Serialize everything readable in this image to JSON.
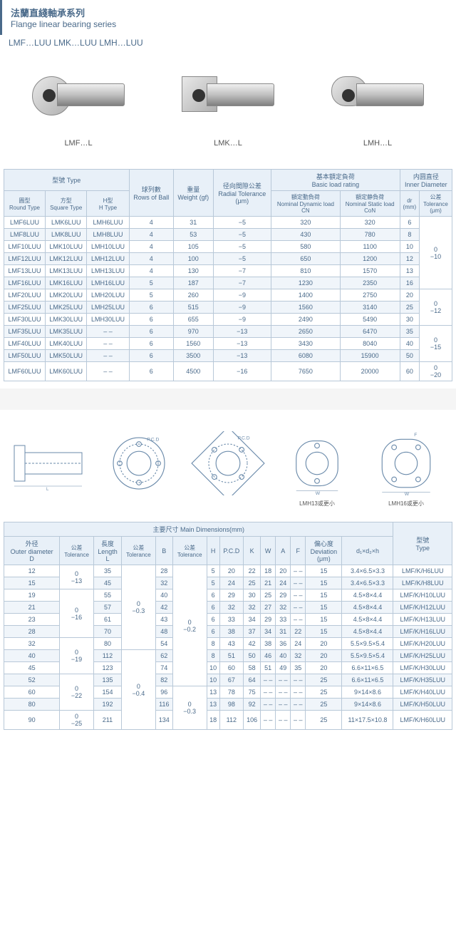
{
  "header": {
    "title_cn": "法蘭直綫軸承系列",
    "title_en": "Flange linear bearing series",
    "subtitle": "LMF…LUU  LMK…LUU  LMH…LUU"
  },
  "products": [
    {
      "label": "LMF…L",
      "shape": "round"
    },
    {
      "label": "LMK…L",
      "shape": "square"
    },
    {
      "label": "LMH…L",
      "shape": "h"
    }
  ],
  "table1": {
    "headers": {
      "type": "型號 Type",
      "type_round": "圓型\nRound Type",
      "type_square": "方型\nSquare Type",
      "type_h": "H型\nH Type",
      "rows_ball": "球列數\nRows of Ball",
      "weight": "重量\nWeight (gf)",
      "radial_tol": "径向間隙公差\nRadial Tolerance\n(μm)",
      "basic_load": "基本額定負荷\nBasic load rating",
      "dyn_load": "額定動負荷\nNominal Dynamic load\nCN",
      "stat_load": "額定静負荷\nNominal Static load\nCoN",
      "inner_dia": "内圆直径\nInner Diameter",
      "dr": "dr\n(mm)",
      "tol": "公差\nTolerance\n(μm)"
    },
    "rows": [
      {
        "r": "LMF6LUU",
        "s": "LMK6LUU",
        "h": "LMH6LUU",
        "rb": "4",
        "w": "31",
        "rt": "−5",
        "dl": "320",
        "sl": "320",
        "dr": "6",
        "tol": ""
      },
      {
        "r": "LMF8LUU",
        "s": "LMK8LUU",
        "h": "LMH8LUU",
        "rb": "4",
        "w": "53",
        "rt": "−5",
        "dl": "430",
        "sl": "780",
        "dr": "8",
        "tol": ""
      },
      {
        "r": "LMF10LUU",
        "s": "LMK10LUU",
        "h": "LMH10LUU",
        "rb": "4",
        "w": "105",
        "rt": "−5",
        "dl": "580",
        "sl": "1100",
        "dr": "10",
        "tol": "0\n−10"
      },
      {
        "r": "LMF12LUU",
        "s": "LMK12LUU",
        "h": "LMH12LUU",
        "rb": "4",
        "w": "100",
        "rt": "−5",
        "dl": "650",
        "sl": "1200",
        "dr": "12",
        "tol": ""
      },
      {
        "r": "LMF13LUU",
        "s": "LMK13LUU",
        "h": "LMH13LUU",
        "rb": "4",
        "w": "130",
        "rt": "−7",
        "dl": "810",
        "sl": "1570",
        "dr": "13",
        "tol": ""
      },
      {
        "r": "LMF16LUU",
        "s": "LMK16LUU",
        "h": "LMH16LUU",
        "rb": "5",
        "w": "187",
        "rt": "−7",
        "dl": "1230",
        "sl": "2350",
        "dr": "16",
        "tol": ""
      },
      {
        "r": "LMF20LUU",
        "s": "LMK20LUU",
        "h": "LMH20LUU",
        "rb": "5",
        "w": "260",
        "rt": "−9",
        "dl": "1400",
        "sl": "2750",
        "dr": "20",
        "tol": ""
      },
      {
        "r": "LMF25LUU",
        "s": "LMK25LUU",
        "h": "LMH25LUU",
        "rb": "6",
        "w": "515",
        "rt": "−9",
        "dl": "1560",
        "sl": "3140",
        "dr": "25",
        "tol": "0\n−12"
      },
      {
        "r": "LMF30LUU",
        "s": "LMK30LUU",
        "h": "LMH30LUU",
        "rb": "6",
        "w": "655",
        "rt": "−9",
        "dl": "2490",
        "sl": "5490",
        "dr": "30",
        "tol": ""
      },
      {
        "r": "LMF35LUU",
        "s": "LMK35LUU",
        "h": "– –",
        "rb": "6",
        "w": "970",
        "rt": "−13",
        "dl": "2650",
        "sl": "6470",
        "dr": "35",
        "tol": ""
      },
      {
        "r": "LMF40LUU",
        "s": "LMK40LUU",
        "h": "– –",
        "rb": "6",
        "w": "1560",
        "rt": "−13",
        "dl": "3430",
        "sl": "8040",
        "dr": "40",
        "tol": "0\n−15"
      },
      {
        "r": "LMF50LUU",
        "s": "LMK50LUU",
        "h": "– –",
        "rb": "6",
        "w": "3500",
        "rt": "−13",
        "dl": "6080",
        "sl": "15900",
        "dr": "50",
        "tol": ""
      },
      {
        "r": "LMF60LUU",
        "s": "LMK60LUU",
        "h": "– –",
        "rb": "6",
        "w": "4500",
        "rt": "−16",
        "dl": "7650",
        "sl": "20000",
        "dr": "60",
        "tol": "0\n−20"
      }
    ],
    "tol_spans": [
      {
        "start": 0,
        "span": 6,
        "val": "0\n−10"
      },
      {
        "start": 6,
        "span": 3,
        "val": "0\n−12"
      },
      {
        "start": 9,
        "span": 3,
        "val": "0\n−15"
      },
      {
        "start": 12,
        "span": 1,
        "val": "0\n−20"
      }
    ]
  },
  "diagrams": {
    "lmh13": "LMH13或更小",
    "lmh16": "LMH16或更小"
  },
  "table2": {
    "title": "主要尺寸 Main Dimensions(mm)",
    "headers": {
      "od": "外径\nOuter diameter\nD",
      "od_tol": "公差\nTolerance",
      "len": "長度\nLength\nL",
      "len_tol": "公差\nTolerance",
      "b": "B",
      "b_tol": "公差\nTolerance",
      "h": "H",
      "pcd": "P.C.D",
      "k": "K",
      "w": "W",
      "a": "A",
      "f": "F",
      "dev": "偏心度\nDeviation\n(μm)",
      "d1d2h": "d₁×d₂×h",
      "type": "型號\nType"
    },
    "rows": [
      {
        "d": "12",
        "dtol": "0\n−13",
        "l": "35",
        "ltol": "",
        "b": "28",
        "btol": "",
        "h": "5",
        "pcd": "20",
        "k": "22",
        "w": "18",
        "a": "20",
        "f": "– –",
        "dev": "15",
        "ddh": "3.4×6.5×3.3",
        "type": "LMF/K/H6LUU"
      },
      {
        "d": "15",
        "dtol": "",
        "l": "45",
        "ltol": "",
        "b": "32",
        "btol": "",
        "h": "5",
        "pcd": "24",
        "k": "25",
        "w": "21",
        "a": "24",
        "f": "– –",
        "dev": "15",
        "ddh": "3.4×6.5×3.3",
        "type": "LMF/K/H8LUU"
      },
      {
        "d": "19",
        "dtol": "",
        "l": "55",
        "ltol": "",
        "b": "40",
        "btol": "",
        "h": "6",
        "pcd": "29",
        "k": "30",
        "w": "25",
        "a": "29",
        "f": "– –",
        "dev": "15",
        "ddh": "4.5×8×4.4",
        "type": "LMF/K/H10LUU"
      },
      {
        "d": "21",
        "dtol": "0\n−16",
        "l": "57",
        "ltol": "0\n−0.3",
        "b": "42",
        "btol": "",
        "h": "6",
        "pcd": "32",
        "k": "32",
        "w": "27",
        "a": "32",
        "f": "– –",
        "dev": "15",
        "ddh": "4.5×8×4.4",
        "type": "LMF/K/H12LUU"
      },
      {
        "d": "23",
        "dtol": "",
        "l": "61",
        "ltol": "",
        "b": "43",
        "btol": "0\n−0.2",
        "h": "6",
        "pcd": "33",
        "k": "34",
        "w": "29",
        "a": "33",
        "f": "– –",
        "dev": "15",
        "ddh": "4.5×8×4.4",
        "type": "LMF/K/H13LUU"
      },
      {
        "d": "28",
        "dtol": "",
        "l": "70",
        "ltol": "",
        "b": "48",
        "btol": "",
        "h": "6",
        "pcd": "38",
        "k": "37",
        "w": "34",
        "a": "31",
        "f": "22",
        "dev": "15",
        "ddh": "4.5×8×4.4",
        "type": "LMF/K/H16LUU"
      },
      {
        "d": "32",
        "dtol": "",
        "l": "80",
        "ltol": "",
        "b": "54",
        "btol": "",
        "h": "8",
        "pcd": "43",
        "k": "42",
        "w": "38",
        "a": "36",
        "f": "24",
        "dev": "20",
        "ddh": "5.5×9.5×5.4",
        "type": "LMF/K/H20LUU"
      },
      {
        "d": "40",
        "dtol": "0\n−19",
        "l": "112",
        "ltol": "",
        "b": "62",
        "btol": "",
        "h": "8",
        "pcd": "51",
        "k": "50",
        "w": "46",
        "a": "40",
        "f": "32",
        "dev": "20",
        "ddh": "5.5×9.5×5.4",
        "type": "LMF/K/H25LUU"
      },
      {
        "d": "45",
        "dtol": "",
        "l": "123",
        "ltol": "",
        "b": "74",
        "btol": "",
        "h": "10",
        "pcd": "60",
        "k": "58",
        "w": "51",
        "a": "49",
        "f": "35",
        "dev": "20",
        "ddh": "6.6×11×6.5",
        "type": "LMF/K/H30LUU"
      },
      {
        "d": "52",
        "dtol": "",
        "l": "135",
        "ltol": "0\n−0.4",
        "b": "82",
        "btol": "",
        "h": "10",
        "pcd": "67",
        "k": "64",
        "w": "– –",
        "a": "– –",
        "f": "– –",
        "dev": "25",
        "ddh": "6.6×11×6.5",
        "type": "LMF/K/H35LUU"
      },
      {
        "d": "60",
        "dtol": "0\n−22",
        "l": "154",
        "ltol": "",
        "b": "96",
        "btol": "",
        "h": "13",
        "pcd": "78",
        "k": "75",
        "w": "– –",
        "a": "– –",
        "f": "– –",
        "dev": "25",
        "ddh": "9×14×8.6",
        "type": "LMF/K/H40LUU"
      },
      {
        "d": "80",
        "dtol": "",
        "l": "192",
        "ltol": "",
        "b": "116",
        "btol": "0\n−0.3",
        "h": "13",
        "pcd": "98",
        "k": "92",
        "w": "– –",
        "a": "– –",
        "f": "– –",
        "dev": "25",
        "ddh": "9×14×8.6",
        "type": "LMF/K/H50LUU"
      },
      {
        "d": "90",
        "dtol": "0\n−25",
        "l": "211",
        "ltol": "",
        "b": "134",
        "btol": "",
        "h": "18",
        "pcd": "112",
        "k": "106",
        "w": "– –",
        "a": "– –",
        "f": "– –",
        "dev": "25",
        "ddh": "11×17.5×10.8",
        "type": "LMF/K/H60LUU"
      }
    ],
    "dtol_spans": [
      {
        "start": 0,
        "span": 2,
        "val": "0\n−13"
      },
      {
        "start": 2,
        "span": 4,
        "val": "0\n−16"
      },
      {
        "start": 6,
        "span": 3,
        "val": "0\n−19"
      },
      {
        "start": 9,
        "span": 3,
        "val": "0\n−22"
      },
      {
        "start": 12,
        "span": 1,
        "val": "0\n−25"
      }
    ],
    "ltol_spans": [
      {
        "start": 0,
        "span": 7,
        "val": "0\n−0.3"
      },
      {
        "start": 7,
        "span": 6,
        "val": "0\n−0.4"
      }
    ],
    "btol_spans": [
      {
        "start": 0,
        "span": 10,
        "val": "0\n−0.2"
      },
      {
        "start": 10,
        "span": 3,
        "val": "0\n−0.3"
      }
    ]
  },
  "colors": {
    "header_bg": "#e8f0f8",
    "border": "#b8c8d8",
    "text": "#4a6a8a",
    "row_alt": "#f0f5fa"
  }
}
